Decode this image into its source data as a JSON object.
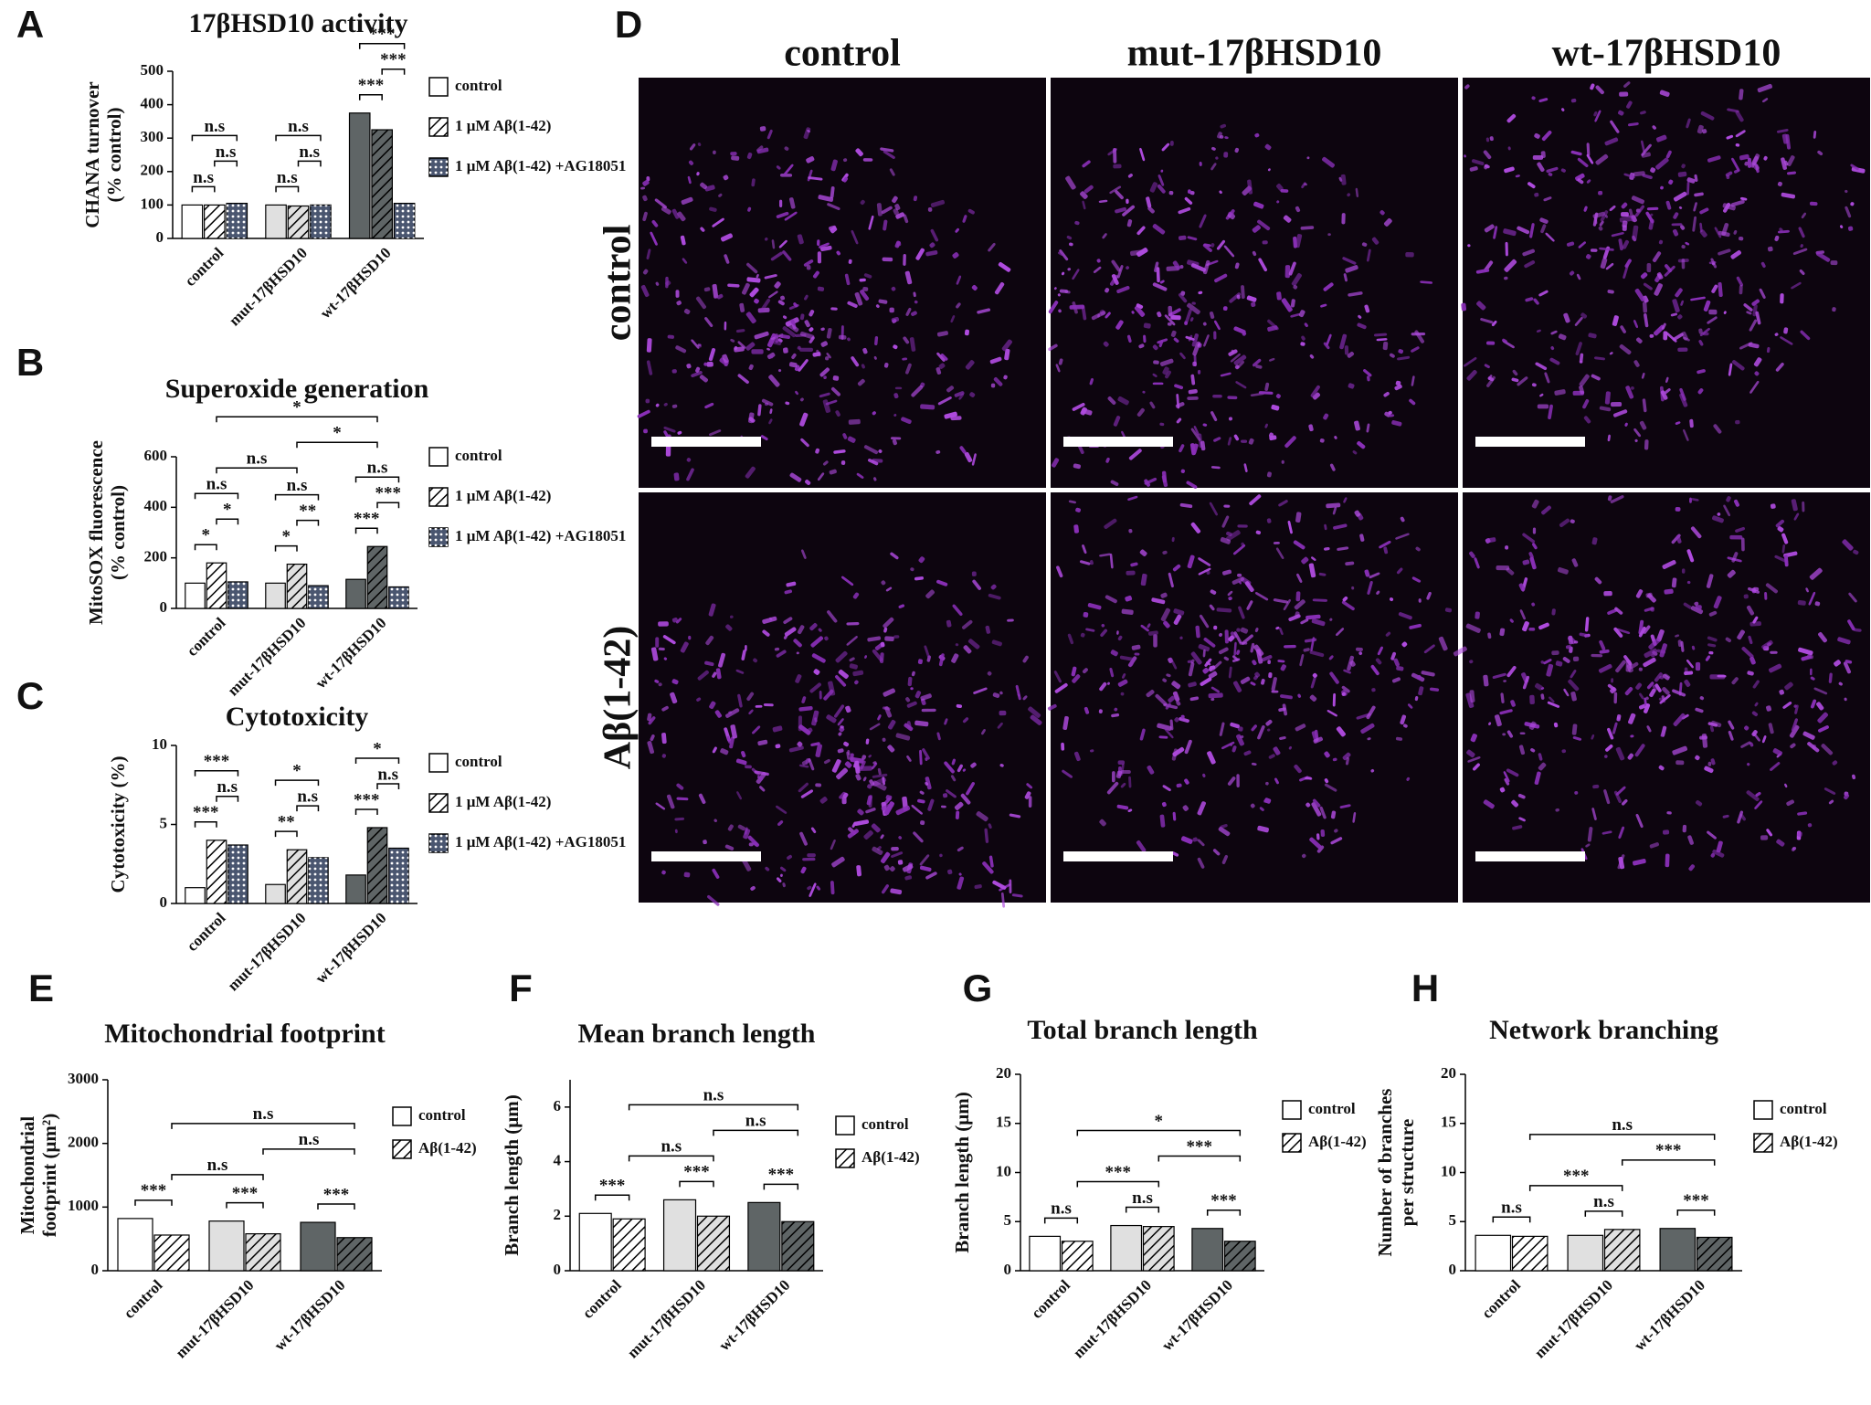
{
  "chart_data": [
    {
      "type": "bar",
      "panel": "A",
      "title": "17βHSD10 activity",
      "ylabel": [
        "CHANA turnover",
        "(% control)"
      ],
      "categories": [
        "control",
        "mut-17βHSD10",
        "wt-17βHSD10"
      ],
      "category_colors": [
        "#ffffff",
        "#e0e0e0",
        "#5f6566"
      ],
      "series": [
        {
          "name": "control",
          "pattern": "none",
          "values": [
            100,
            100,
            375
          ]
        },
        {
          "name": "1 μM Aβ(1-42)",
          "pattern": "hatch",
          "values": [
            100,
            97,
            325
          ]
        },
        {
          "name": "1 μM Aβ(1-42) +AG18051",
          "pattern": "dots",
          "color": "#4a5670",
          "values": [
            105,
            100,
            105
          ]
        }
      ],
      "ylim": [
        0,
        500
      ],
      "yticks": [
        0,
        100,
        200,
        300,
        400,
        500
      ],
      "annotations": [
        {
          "text": "n.s",
          "from": [
            0,
            0
          ],
          "to": [
            0,
            1
          ]
        },
        {
          "text": "n.s",
          "from": [
            0,
            1
          ],
          "to": [
            0,
            2
          ]
        },
        {
          "text": "n.s",
          "from": [
            0,
            0
          ],
          "to": [
            0,
            2
          ]
        },
        {
          "text": "n.s",
          "from": [
            1,
            0
          ],
          "to": [
            1,
            1
          ]
        },
        {
          "text": "n.s",
          "from": [
            1,
            1
          ],
          "to": [
            1,
            2
          ]
        },
        {
          "text": "n.s",
          "from": [
            1,
            0
          ],
          "to": [
            1,
            2
          ]
        },
        {
          "text": "***",
          "from": [
            2,
            0
          ],
          "to": [
            2,
            1
          ]
        },
        {
          "text": "***",
          "from": [
            2,
            1
          ],
          "to": [
            2,
            2
          ]
        },
        {
          "text": "***",
          "from": [
            2,
            0
          ],
          "to": [
            2,
            2
          ]
        }
      ]
    },
    {
      "type": "bar",
      "panel": "B",
      "title": "Superoxide generation",
      "ylabel": [
        "MitoSOX fluorescence",
        "(% control)"
      ],
      "categories": [
        "control",
        "mut-17βHSD10",
        "wt-17βHSD10"
      ],
      "category_colors": [
        "#ffffff",
        "#e0e0e0",
        "#5f6566"
      ],
      "series": [
        {
          "name": "control",
          "pattern": "none",
          "values": [
            100,
            100,
            115
          ]
        },
        {
          "name": "1 μM Aβ(1-42)",
          "pattern": "hatch",
          "values": [
            180,
            175,
            245
          ]
        },
        {
          "name": "1 μM Aβ(1-42) +AG18051",
          "pattern": "dots",
          "color": "#4a5670",
          "values": [
            105,
            90,
            85
          ]
        }
      ],
      "ylim": [
        0,
        600
      ],
      "yticks": [
        0,
        200,
        400,
        600
      ],
      "annotations": [
        {
          "text": "*",
          "from": [
            0,
            0
          ],
          "to": [
            0,
            1
          ]
        },
        {
          "text": "*",
          "from": [
            0,
            1
          ],
          "to": [
            0,
            2
          ]
        },
        {
          "text": "n.s",
          "from": [
            0,
            0
          ],
          "to": [
            0,
            2
          ]
        },
        {
          "text": "*",
          "from": [
            1,
            0
          ],
          "to": [
            1,
            1
          ]
        },
        {
          "text": "**",
          "from": [
            1,
            1
          ],
          "to": [
            1,
            2
          ]
        },
        {
          "text": "n.s",
          "from": [
            1,
            0
          ],
          "to": [
            1,
            2
          ]
        },
        {
          "text": "***",
          "from": [
            2,
            0
          ],
          "to": [
            2,
            1
          ]
        },
        {
          "text": "***",
          "from": [
            2,
            1
          ],
          "to": [
            2,
            2
          ]
        },
        {
          "text": "n.s",
          "from": [
            2,
            0
          ],
          "to": [
            2,
            2
          ]
        },
        {
          "text": "n.s",
          "from": [
            0,
            1
          ],
          "to": [
            1,
            1
          ]
        },
        {
          "text": "*",
          "from": [
            1,
            1
          ],
          "to": [
            2,
            1
          ]
        },
        {
          "text": "*",
          "from": [
            0,
            1
          ],
          "to": [
            2,
            1
          ]
        }
      ]
    },
    {
      "type": "bar",
      "panel": "C",
      "title": "Cytotoxicity",
      "ylabel": [
        "Cytotoxicity (%)"
      ],
      "categories": [
        "control",
        "mut-17βHSD10",
        "wt-17βHSD10"
      ],
      "category_colors": [
        "#ffffff",
        "#e0e0e0",
        "#5f6566"
      ],
      "series": [
        {
          "name": "control",
          "pattern": "none",
          "values": [
            1,
            1.2,
            1.8
          ]
        },
        {
          "name": "1 μM Aβ(1-42)",
          "pattern": "hatch",
          "values": [
            4,
            3.4,
            4.8
          ]
        },
        {
          "name": "1 μM Aβ(1-42) +AG18051",
          "pattern": "dots",
          "color": "#4a5670",
          "values": [
            3.7,
            2.9,
            3.5
          ]
        }
      ],
      "ylim": [
        0,
        10
      ],
      "yticks": [
        0,
        5,
        10
      ],
      "annotations": [
        {
          "text": "***",
          "from": [
            0,
            0
          ],
          "to": [
            0,
            1
          ]
        },
        {
          "text": "n.s",
          "from": [
            0,
            1
          ],
          "to": [
            0,
            2
          ]
        },
        {
          "text": "***",
          "from": [
            0,
            0
          ],
          "to": [
            0,
            2
          ]
        },
        {
          "text": "**",
          "from": [
            1,
            0
          ],
          "to": [
            1,
            1
          ]
        },
        {
          "text": "n.s",
          "from": [
            1,
            1
          ],
          "to": [
            1,
            2
          ]
        },
        {
          "text": "*",
          "from": [
            1,
            0
          ],
          "to": [
            1,
            2
          ]
        },
        {
          "text": "***",
          "from": [
            2,
            0
          ],
          "to": [
            2,
            1
          ]
        },
        {
          "text": "n.s",
          "from": [
            2,
            1
          ],
          "to": [
            2,
            2
          ]
        },
        {
          "text": "*",
          "from": [
            2,
            0
          ],
          "to": [
            2,
            2
          ]
        }
      ]
    },
    {
      "type": "bar",
      "panel": "E",
      "title": "Mitochondrial footprint",
      "ylabel": [
        "Mitochondrial",
        "footprint (μm²)"
      ],
      "categories": [
        "control",
        "mut-17βHSD10",
        "wt-17βHSD10"
      ],
      "category_colors": [
        "#ffffff",
        "#e0e0e0",
        "#5f6566"
      ],
      "series": [
        {
          "name": "control",
          "pattern": "none",
          "values": [
            820,
            780,
            760
          ]
        },
        {
          "name": "Aβ(1-42)",
          "pattern": "hatch",
          "values": [
            560,
            580,
            520
          ]
        }
      ],
      "ylim": [
        0,
        3000
      ],
      "yticks": [
        0,
        1000,
        2000,
        3000
      ],
      "annotations": [
        {
          "text": "***",
          "from": [
            0,
            0
          ],
          "to": [
            0,
            1
          ]
        },
        {
          "text": "***",
          "from": [
            1,
            0
          ],
          "to": [
            1,
            1
          ]
        },
        {
          "text": "***",
          "from": [
            2,
            0
          ],
          "to": [
            2,
            1
          ]
        },
        {
          "text": "n.s",
          "from": [
            0,
            1
          ],
          "to": [
            1,
            1
          ]
        },
        {
          "text": "n.s",
          "from": [
            1,
            1
          ],
          "to": [
            2,
            1
          ]
        },
        {
          "text": "n.s",
          "from": [
            0,
            1
          ],
          "to": [
            2,
            1
          ]
        }
      ]
    },
    {
      "type": "bar",
      "panel": "F",
      "title": "Mean branch length",
      "ylabel": [
        "Branch length (μm)"
      ],
      "categories": [
        "control",
        "mut-17βHSD10",
        "wt-17βHSD10"
      ],
      "category_colors": [
        "#ffffff",
        "#e0e0e0",
        "#5f6566"
      ],
      "series": [
        {
          "name": "control",
          "pattern": "none",
          "values": [
            2.1,
            2.6,
            2.5
          ]
        },
        {
          "name": "Aβ(1-42)",
          "pattern": "hatch",
          "values": [
            1.9,
            2.0,
            1.8
          ]
        }
      ],
      "ylim": [
        0,
        7
      ],
      "yticks": [
        0,
        2,
        4,
        6
      ],
      "annotations": [
        {
          "text": "***",
          "from": [
            0,
            0
          ],
          "to": [
            0,
            1
          ]
        },
        {
          "text": "***",
          "from": [
            1,
            0
          ],
          "to": [
            1,
            1
          ]
        },
        {
          "text": "***",
          "from": [
            2,
            0
          ],
          "to": [
            2,
            1
          ]
        },
        {
          "text": "n.s",
          "from": [
            0,
            1
          ],
          "to": [
            1,
            1
          ]
        },
        {
          "text": "n.s",
          "from": [
            1,
            1
          ],
          "to": [
            2,
            1
          ]
        },
        {
          "text": "n.s",
          "from": [
            0,
            1
          ],
          "to": [
            2,
            1
          ]
        }
      ]
    },
    {
      "type": "bar",
      "panel": "G",
      "title": "Total branch length",
      "ylabel": [
        "Branch length (μm)"
      ],
      "categories": [
        "control",
        "mut-17βHSD10",
        "wt-17βHSD10"
      ],
      "category_colors": [
        "#ffffff",
        "#e0e0e0",
        "#5f6566"
      ],
      "series": [
        {
          "name": "control",
          "pattern": "none",
          "values": [
            3.5,
            4.6,
            4.3
          ]
        },
        {
          "name": "Aβ(1-42)",
          "pattern": "hatch",
          "values": [
            3.0,
            4.5,
            3.0
          ]
        }
      ],
      "ylim": [
        0,
        20
      ],
      "yticks": [
        0,
        5,
        10,
        15,
        20
      ],
      "annotations": [
        {
          "text": "n.s",
          "from": [
            0,
            0
          ],
          "to": [
            0,
            1
          ]
        },
        {
          "text": "n.s",
          "from": [
            1,
            0
          ],
          "to": [
            1,
            1
          ]
        },
        {
          "text": "***",
          "from": [
            2,
            0
          ],
          "to": [
            2,
            1
          ]
        },
        {
          "text": "***",
          "from": [
            0,
            1
          ],
          "to": [
            1,
            1
          ]
        },
        {
          "text": "***",
          "from": [
            1,
            1
          ],
          "to": [
            2,
            1
          ]
        },
        {
          "text": "*",
          "from": [
            0,
            1
          ],
          "to": [
            2,
            1
          ]
        }
      ]
    },
    {
      "type": "bar",
      "panel": "H",
      "title": "Network branching",
      "ylabel": [
        "Number of branches",
        "per structure"
      ],
      "categories": [
        "control",
        "mut-17βHSD10",
        "wt-17βHSD10"
      ],
      "category_colors": [
        "#ffffff",
        "#e0e0e0",
        "#5f6566"
      ],
      "series": [
        {
          "name": "control",
          "pattern": "none",
          "values": [
            3.6,
            3.6,
            4.3
          ]
        },
        {
          "name": "Aβ(1-42)",
          "pattern": "hatch",
          "values": [
            3.5,
            4.2,
            3.4
          ]
        }
      ],
      "ylim": [
        0,
        20
      ],
      "yticks": [
        0,
        5,
        10,
        15,
        20
      ],
      "annotations": [
        {
          "text": "n.s",
          "from": [
            0,
            0
          ],
          "to": [
            0,
            1
          ]
        },
        {
          "text": "n.s",
          "from": [
            1,
            0
          ],
          "to": [
            1,
            1
          ]
        },
        {
          "text": "***",
          "from": [
            2,
            0
          ],
          "to": [
            2,
            1
          ]
        },
        {
          "text": "***",
          "from": [
            0,
            1
          ],
          "to": [
            1,
            1
          ]
        },
        {
          "text": "***",
          "from": [
            1,
            1
          ],
          "to": [
            2,
            1
          ]
        },
        {
          "text": "n.s",
          "from": [
            0,
            1
          ],
          "to": [
            2,
            1
          ]
        }
      ]
    }
  ],
  "image_panel": {
    "panel": "D",
    "columns": [
      "control",
      "mut-17βHSD10",
      "wt-17βHSD10"
    ],
    "rows": [
      "control",
      "Aβ(1-42)"
    ]
  }
}
